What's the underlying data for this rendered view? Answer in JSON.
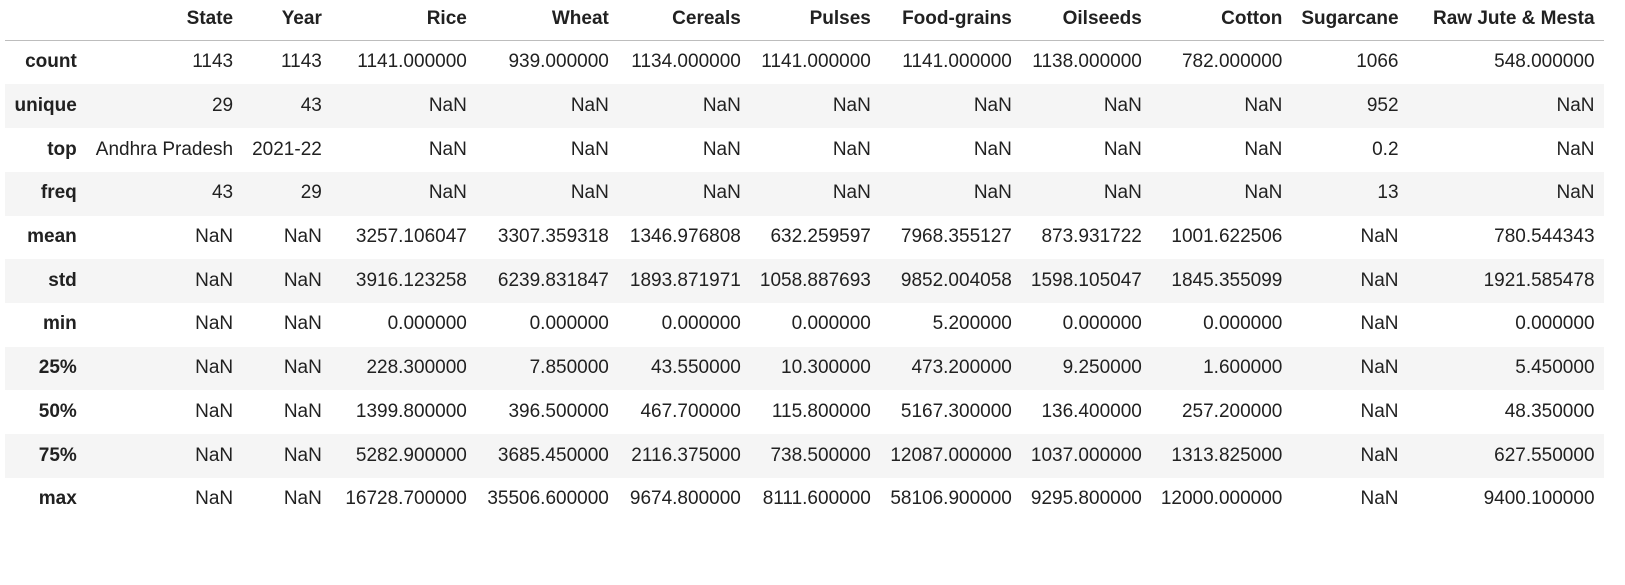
{
  "table": {
    "columns": [
      "",
      "State",
      "Year",
      "Rice",
      "Wheat",
      "Cereals",
      "Pulses",
      "Food-grains",
      "Oilseeds",
      "Cotton",
      "Sugarcane",
      "Raw Jute & Mesta"
    ],
    "rows": [
      {
        "label": "count",
        "values": [
          "1143",
          "1143",
          "1141.000000",
          "939.000000",
          "1134.000000",
          "1141.000000",
          "1141.000000",
          "1138.000000",
          "782.000000",
          "1066",
          "548.000000"
        ]
      },
      {
        "label": "unique",
        "values": [
          "29",
          "43",
          "NaN",
          "NaN",
          "NaN",
          "NaN",
          "NaN",
          "NaN",
          "NaN",
          "952",
          "NaN"
        ]
      },
      {
        "label": "top",
        "values": [
          "Andhra Pradesh",
          "2021-22",
          "NaN",
          "NaN",
          "NaN",
          "NaN",
          "NaN",
          "NaN",
          "NaN",
          "0.2",
          "NaN"
        ]
      },
      {
        "label": "freq",
        "values": [
          "43",
          "29",
          "NaN",
          "NaN",
          "NaN",
          "NaN",
          "NaN",
          "NaN",
          "NaN",
          "13",
          "NaN"
        ]
      },
      {
        "label": "mean",
        "values": [
          "NaN",
          "NaN",
          "3257.106047",
          "3307.359318",
          "1346.976808",
          "632.259597",
          "7968.355127",
          "873.931722",
          "1001.622506",
          "NaN",
          "780.544343"
        ]
      },
      {
        "label": "std",
        "values": [
          "NaN",
          "NaN",
          "3916.123258",
          "6239.831847",
          "1893.871971",
          "1058.887693",
          "9852.004058",
          "1598.105047",
          "1845.355099",
          "NaN",
          "1921.585478"
        ]
      },
      {
        "label": "min",
        "values": [
          "NaN",
          "NaN",
          "0.000000",
          "0.000000",
          "0.000000",
          "0.000000",
          "5.200000",
          "0.000000",
          "0.000000",
          "NaN",
          "0.000000"
        ]
      },
      {
        "label": "25%",
        "values": [
          "NaN",
          "NaN",
          "228.300000",
          "7.850000",
          "43.550000",
          "10.300000",
          "473.200000",
          "9.250000",
          "1.600000",
          "NaN",
          "5.450000"
        ]
      },
      {
        "label": "50%",
        "values": [
          "NaN",
          "NaN",
          "1399.800000",
          "396.500000",
          "467.700000",
          "115.800000",
          "5167.300000",
          "136.400000",
          "257.200000",
          "NaN",
          "48.350000"
        ]
      },
      {
        "label": "75%",
        "values": [
          "NaN",
          "NaN",
          "5282.900000",
          "3685.450000",
          "2116.375000",
          "738.500000",
          "12087.000000",
          "1037.000000",
          "1313.825000",
          "NaN",
          "627.550000"
        ]
      },
      {
        "label": "max",
        "values": [
          "NaN",
          "NaN",
          "16728.700000",
          "35506.600000",
          "9674.800000",
          "8111.600000",
          "58106.900000",
          "9295.800000",
          "12000.000000",
          "NaN",
          "9400.100000"
        ]
      }
    ]
  },
  "style": {
    "stripe_color": "#f5f5f5",
    "header_border_color": "#bdbdbd",
    "text_color": "#212121",
    "background_color": "#ffffff"
  }
}
